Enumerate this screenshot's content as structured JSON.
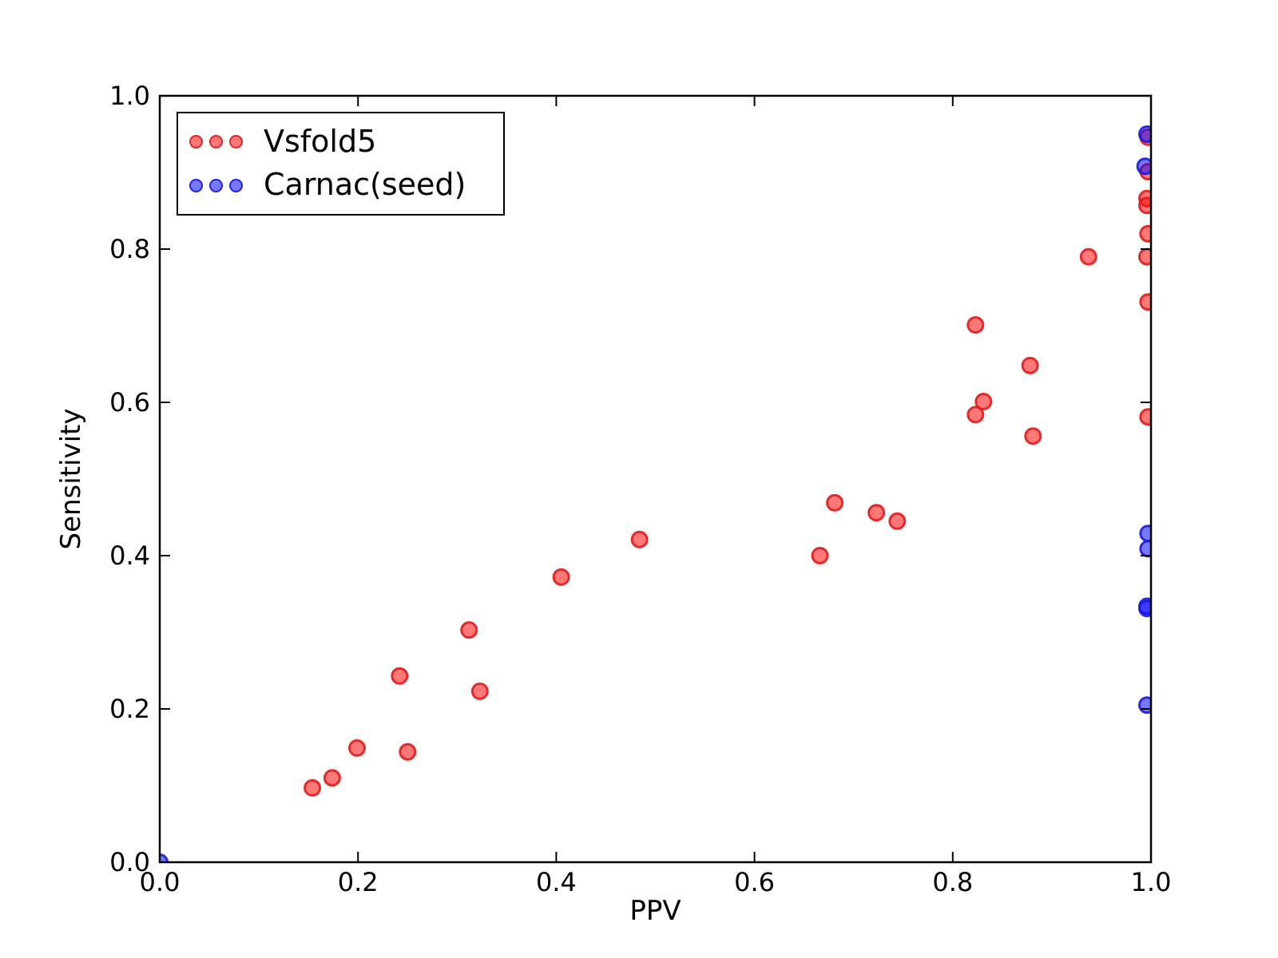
{
  "figure": {
    "background": "#ffffff",
    "axis_color": "#000000",
    "tick_direction": "in"
  },
  "chart_data": {
    "type": "scatter",
    "title": "",
    "xlabel": "PPV",
    "ylabel": "Sensitivity",
    "xlim": [
      0.0,
      1.0
    ],
    "ylim": [
      0.0,
      1.0
    ],
    "xticks": [
      0.0,
      0.2,
      0.4,
      0.6,
      0.8,
      1.0
    ],
    "yticks": [
      0.0,
      0.2,
      0.4,
      0.6,
      0.8,
      1.0
    ],
    "xtick_labels": [
      "0.0",
      "0.2",
      "0.4",
      "0.6",
      "0.8",
      "1.0"
    ],
    "ytick_labels": [
      "0.0",
      "0.2",
      "0.4",
      "0.6",
      "0.8",
      "1.0"
    ],
    "grid": false,
    "legend_position": "upper-left",
    "marker": "circle",
    "series": [
      {
        "name": "Vsfold5",
        "color": "#ff0000",
        "face_color": "rgba(255,10,10,0.55)",
        "edge_color": "rgba(225,25,25,0.9)",
        "points": [
          [
            0.154,
            0.097
          ],
          [
            0.174,
            0.11
          ],
          [
            0.199,
            0.149
          ],
          [
            0.242,
            0.243
          ],
          [
            0.25,
            0.144
          ],
          [
            0.312,
            0.303
          ],
          [
            0.323,
            0.223
          ],
          [
            0.405,
            0.372
          ],
          [
            0.484,
            0.421
          ],
          [
            0.666,
            0.4
          ],
          [
            0.681,
            0.469
          ],
          [
            0.723,
            0.456
          ],
          [
            0.744,
            0.445
          ],
          [
            0.823,
            0.701
          ],
          [
            0.831,
            0.601
          ],
          [
            0.823,
            0.584
          ],
          [
            0.878,
            0.648
          ],
          [
            0.881,
            0.556
          ],
          [
            0.937,
            0.79
          ],
          [
            0.997,
            0.946
          ],
          [
            0.997,
            0.901
          ],
          [
            0.996,
            0.866
          ],
          [
            0.996,
            0.857
          ],
          [
            0.997,
            0.82
          ],
          [
            0.996,
            0.79
          ],
          [
            0.997,
            0.731
          ],
          [
            0.997,
            0.581
          ]
        ]
      },
      {
        "name": "Carnac(seed)",
        "color": "#0000ff",
        "face_color": "rgba(10,10,255,0.55)",
        "edge_color": "rgba(25,25,225,0.9)",
        "points": [
          [
            0.0,
            0.0
          ],
          [
            0.996,
            0.95
          ],
          [
            0.994,
            0.908
          ],
          [
            0.997,
            0.429
          ],
          [
            0.997,
            0.409
          ],
          [
            0.996,
            0.334
          ],
          [
            0.996,
            0.331
          ],
          [
            0.996,
            0.205
          ]
        ]
      }
    ]
  }
}
